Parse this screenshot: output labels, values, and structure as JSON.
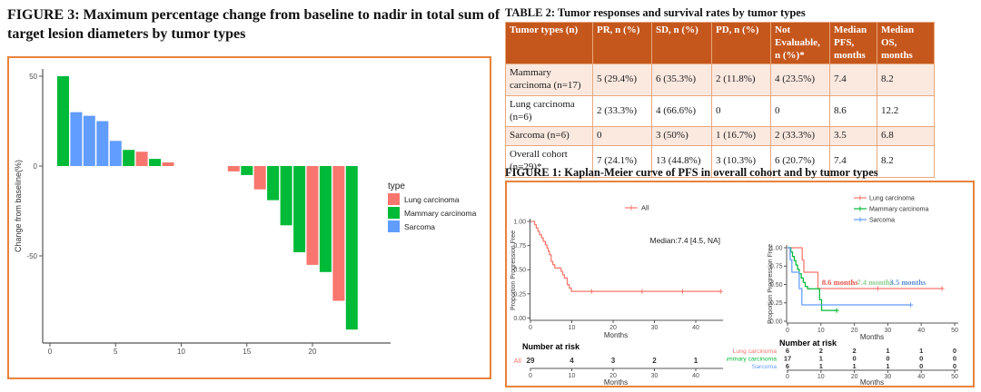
{
  "colors": {
    "lung": "#F8766D",
    "mammary": "#00BA38",
    "sarcoma": "#619CFF",
    "panel_border": "#E8833A",
    "table_header_bg": "#C5571D",
    "table_row_alt_bg": "#FBE9E0",
    "table_border": "#E8A77C",
    "axis_text": "#4D4D4D",
    "axis_line": "#555555"
  },
  "figure3": {
    "title": "FIGURE 3: Maximum percentage change from baseline to nadir in total sum of target lesion diameters by tumor types"
  },
  "table2": {
    "title": "TABLE 2: Tumor responses and survival rates by tumor types",
    "columns": [
      "Tumor types (n)",
      "PR, n (%)",
      "SD, n (%)",
      "PD, n (%)",
      "Not Evaluable, n (%)*",
      "Median PFS, months",
      "Median OS, months"
    ],
    "rows": [
      [
        "Mammary carcinoma (n=17)",
        "5 (29.4%)",
        "6 (35.3%)",
        "2 (11.8%)",
        "4 (23.5%)",
        "7.4",
        "8.2"
      ],
      [
        "Lung carcinoma (n=6)",
        "2 (33.3%)",
        "4 (66.6%)",
        "0",
        "0",
        "8.6",
        "12.2"
      ],
      [
        "Sarcoma (n=6)",
        "0",
        "3 (50%)",
        "1 (16.7%)",
        "2 (33.3%)",
        "3.5",
        "6.8"
      ],
      [
        "Overall cohort (n=29)*",
        "7 (24.1%)",
        "13 (44.8%)",
        "3 (10.3%)",
        "6 (20.7%)",
        "7.4",
        "8.2"
      ]
    ]
  },
  "figure1": {
    "title": "FIGURE 1: Kaplan-Meier curve of PFS in overall cohort and by tumor types"
  },
  "chart_data": [
    {
      "type": "bar",
      "subtype": "waterfall",
      "title": "",
      "xlabel": "",
      "ylabel": "Change from baseline(%)",
      "ylim": [
        -95,
        55
      ],
      "xlim": [
        0,
        24.5
      ],
      "x_ticks": [
        "0",
        "5",
        "10",
        "15",
        "20"
      ],
      "x_tick_values": [
        0,
        5,
        10,
        15,
        20
      ],
      "y_ticks": [
        "50",
        "0",
        "-50"
      ],
      "y_tick_values": [
        50,
        0,
        -50
      ],
      "legend_title": "type",
      "legend_position": "right",
      "legend": [
        {
          "label": "Lung carcinoma",
          "color": "#F8766D"
        },
        {
          "label": "Mammary carcinoma",
          "color": "#00BA38"
        },
        {
          "label": "Sarcoma",
          "color": "#619CFF"
        }
      ],
      "bars": [
        {
          "x": 1,
          "value": 50,
          "type": "Mammary carcinoma"
        },
        {
          "x": 2,
          "value": 30,
          "type": "Sarcoma"
        },
        {
          "x": 3,
          "value": 28,
          "type": "Sarcoma"
        },
        {
          "x": 4,
          "value": 25,
          "type": "Sarcoma"
        },
        {
          "x": 5,
          "value": 14,
          "type": "Sarcoma"
        },
        {
          "x": 6,
          "value": 9,
          "type": "Mammary carcinoma"
        },
        {
          "x": 7,
          "value": 8,
          "type": "Lung carcinoma"
        },
        {
          "x": 8,
          "value": 4,
          "type": "Mammary carcinoma"
        },
        {
          "x": 9,
          "value": 2,
          "type": "Lung carcinoma"
        },
        {
          "x": 14,
          "value": -3,
          "type": "Lung carcinoma"
        },
        {
          "x": 15,
          "value": -5,
          "type": "Mammary carcinoma"
        },
        {
          "x": 16,
          "value": -13,
          "type": "Lung carcinoma"
        },
        {
          "x": 17,
          "value": -19,
          "type": "Mammary carcinoma"
        },
        {
          "x": 18,
          "value": -33,
          "type": "Mammary carcinoma"
        },
        {
          "x": 19,
          "value": -48,
          "type": "Mammary carcinoma"
        },
        {
          "x": 20,
          "value": -55,
          "type": "Lung carcinoma"
        },
        {
          "x": 21,
          "value": -59,
          "type": "Mammary carcinoma"
        },
        {
          "x": 22,
          "value": -75,
          "type": "Lung carcinoma"
        },
        {
          "x": 23,
          "value": -91,
          "type": "Mammary carcinoma"
        }
      ]
    },
    {
      "type": "line",
      "subtype": "kaplan-meier",
      "xlabel": "Months",
      "ylabel": "Proportion Progression Free",
      "xlim": [
        0,
        47
      ],
      "x_ticks": [
        0,
        10,
        20,
        30,
        40
      ],
      "y_ticks": [
        "1.00",
        "0.75",
        "0.50",
        "0.25",
        "0.00"
      ],
      "annotation": "Median:7.4 [4.5, NA]",
      "legend": [
        {
          "label": "All",
          "color": "#F8766D"
        }
      ],
      "series": [
        {
          "name": "All",
          "color": "#F8766D",
          "steps": [
            [
              0,
              1
            ],
            [
              1,
              0.966
            ],
            [
              1.4,
              0.931
            ],
            [
              1.8,
              0.897
            ],
            [
              2.2,
              0.862
            ],
            [
              2.7,
              0.828
            ],
            [
              3.1,
              0.793
            ],
            [
              3.6,
              0.759
            ],
            [
              4,
              0.724
            ],
            [
              4.3,
              0.69
            ],
            [
              4.6,
              0.655
            ],
            [
              5,
              0.586
            ],
            [
              5.4,
              0.552
            ],
            [
              5.9,
              0.517
            ],
            [
              7.4,
              0.483
            ],
            [
              7.8,
              0.448
            ],
            [
              8.2,
              0.414
            ],
            [
              8.9,
              0.345
            ],
            [
              9.4,
              0.31
            ],
            [
              9.9,
              0.276
            ],
            [
              46,
              0.276
            ]
          ],
          "censors": [
            [
              14.8,
              0.276
            ],
            [
              27,
              0.276
            ],
            [
              36.8,
              0.276
            ],
            [
              46,
              0.276
            ]
          ]
        }
      ],
      "risk_table": {
        "title": "Number at risk",
        "xlabel": "Months",
        "x_ticks": [
          0,
          10,
          20,
          30,
          40
        ],
        "rows": [
          {
            "label": "All",
            "color": "#F8766D",
            "values": [
              "29",
              "4",
              "3",
              "2",
              "1"
            ]
          }
        ]
      }
    },
    {
      "type": "line",
      "subtype": "kaplan-meier",
      "xlabel": "Months",
      "ylabel": "Proportion Progression Free",
      "xlim": [
        0,
        51
      ],
      "x_ticks": [
        0,
        10,
        20,
        30,
        40,
        50
      ],
      "y_ticks": [
        "1.00",
        "0.75",
        "0.50",
        "0.25",
        "0.00"
      ],
      "legend": [
        {
          "label": "Lung carcinoma",
          "color": "#F8766D"
        },
        {
          "label": "Mammary carcinoma",
          "color": "#00BA38"
        },
        {
          "label": "Sarcoma",
          "color": "#619CFF"
        }
      ],
      "annotations": [
        {
          "text": "8.6 months",
          "color": "#E8564B",
          "x": 10.3,
          "y": 0.52
        },
        {
          "text": "7.4 months",
          "color": "#8FCE8F",
          "x": 20.8,
          "y": 0.52
        },
        {
          "text": "3.5 months",
          "color": "#5C8FD6",
          "x": 30.6,
          "y": 0.52
        }
      ],
      "series": [
        {
          "name": "Lung carcinoma",
          "color": "#F8766D",
          "steps": [
            [
              0,
              1
            ],
            [
              4.4,
              0.833
            ],
            [
              4.9,
              0.667
            ],
            [
              9.1,
              0.444
            ],
            [
              46.2,
              0.444
            ]
          ],
          "censors": [
            [
              27,
              0.444
            ],
            [
              46.2,
              0.444
            ]
          ]
        },
        {
          "name": "Mammary carcinoma",
          "color": "#00BA38",
          "steps": [
            [
              0,
              1
            ],
            [
              1,
              0.941
            ],
            [
              1.5,
              0.882
            ],
            [
              2,
              0.824
            ],
            [
              2.5,
              0.765
            ],
            [
              3,
              0.706
            ],
            [
              3.5,
              0.647
            ],
            [
              4.1,
              0.588
            ],
            [
              4.7,
              0.529
            ],
            [
              5.3,
              0.471
            ],
            [
              6,
              0.441
            ],
            [
              9.6,
              0.294
            ],
            [
              10.2,
              0.147
            ],
            [
              14.7,
              0.147
            ]
          ],
          "censors": [
            [
              14.7,
              0.147
            ]
          ]
        },
        {
          "name": "Sarcoma",
          "color": "#619CFF",
          "steps": [
            [
              0,
              1
            ],
            [
              0.8,
              0.833
            ],
            [
              1.3,
              0.667
            ],
            [
              3.5,
              0.444
            ],
            [
              4.3,
              0.222
            ],
            [
              36.8,
              0.222
            ]
          ],
          "censors": [
            [
              36.8,
              0.222
            ]
          ]
        }
      ],
      "risk_table": {
        "title": "Number at risk",
        "xlabel": "Months",
        "x_ticks": [
          0,
          10,
          20,
          30,
          40,
          50
        ],
        "rows": [
          {
            "label": "Lung carcinoma",
            "color": "#F8766D",
            "values": [
              "6",
              "2",
              "2",
              "1",
              "1",
              "0"
            ]
          },
          {
            "label": "Mammary carcinoma",
            "color": "#00BA38",
            "values": [
              "17",
              "1",
              "0",
              "0",
              "0",
              "0"
            ]
          },
          {
            "label": "Sarcoma",
            "color": "#619CFF",
            "values": [
              "6",
              "1",
              "1",
              "1",
              "0",
              "0"
            ]
          }
        ]
      }
    }
  ]
}
